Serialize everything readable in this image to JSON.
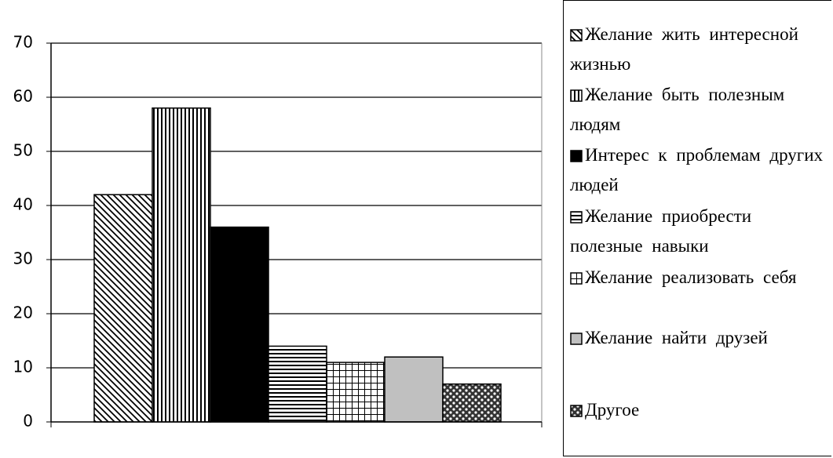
{
  "chart_data": {
    "type": "bar",
    "categories": [
      null
    ],
    "series": [
      {
        "name": "Желание жить интересной жизнью",
        "color": "#000000",
        "pattern": "diagonal",
        "values": [
          42
        ]
      },
      {
        "name": "Желание быть полезным людям",
        "color": "#000000",
        "pattern": "vertical",
        "values": [
          58
        ]
      },
      {
        "name": "Интерес к проблемам других людей",
        "color": "#000000",
        "pattern": "solid",
        "values": [
          36
        ]
      },
      {
        "name": "Желание приобрести полезные навыки",
        "color": "#000000",
        "pattern": "horizontal",
        "values": [
          14
        ]
      },
      {
        "name": "Желание реализовать себя",
        "color": "#000000",
        "pattern": "grid",
        "values": [
          11
        ]
      },
      {
        "name": "Желание найти друзей",
        "color": "#c0c0c0",
        "pattern": "solid",
        "values": [
          12
        ]
      },
      {
        "name": "Другое",
        "color": "#000000",
        "pattern": "dots",
        "values": [
          7
        ]
      }
    ],
    "ylim": [
      0,
      70
    ],
    "yticks": [
      0,
      10,
      20,
      30,
      40,
      50,
      60,
      70
    ],
    "grid": true,
    "legend": "right"
  }
}
